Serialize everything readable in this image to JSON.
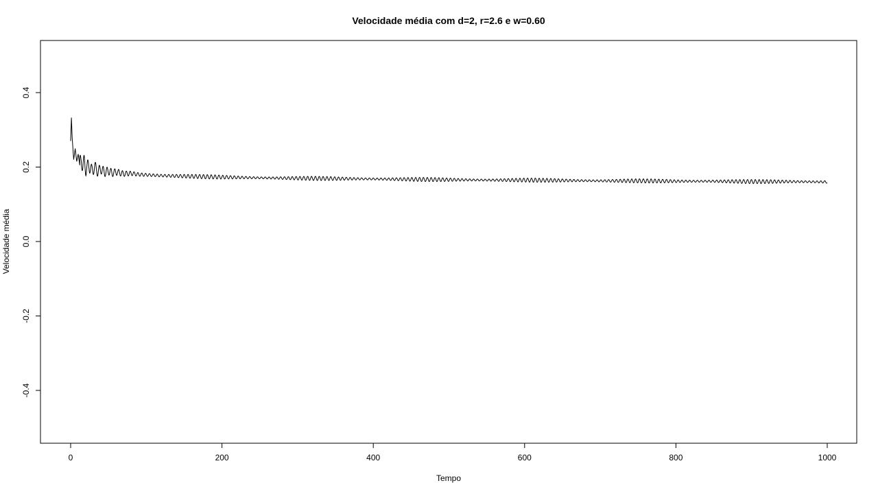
{
  "chart_data": {
    "type": "line",
    "title": "Velocidade média com d=2, r=2.6 e w=0.60",
    "xlabel": "Tempo",
    "ylabel": "Velocidade média",
    "xlim": [
      0,
      1000
    ],
    "ylim": [
      -0.5,
      0.5
    ],
    "x_ticks": [
      0,
      200,
      400,
      600,
      800,
      1000
    ],
    "x_tick_labels": [
      "0",
      "200",
      "400",
      "600",
      "800",
      "1000"
    ],
    "y_ticks": [
      -0.4,
      -0.2,
      0.0,
      0.2,
      0.4
    ],
    "y_tick_labels": [
      "-0.4",
      "-0.2",
      "0.0",
      "0.2",
      "0.4"
    ],
    "grid": false,
    "legend": "none",
    "line_color": "#000000",
    "series": [
      {
        "x": [
          0,
          1,
          2,
          4,
          6,
          8,
          10,
          12,
          14,
          16,
          18,
          20,
          24,
          28,
          32,
          36,
          40,
          45,
          50,
          55,
          60,
          70,
          80,
          90,
          100,
          120,
          140,
          160,
          180,
          200,
          250,
          300,
          350,
          400,
          450,
          500,
          550,
          600,
          650,
          700,
          750,
          800,
          850,
          900,
          950,
          1000
        ],
        "y": [
          0.27,
          0.333,
          0.28,
          0.22,
          0.25,
          0.215,
          0.235,
          0.205,
          0.225,
          0.2,
          0.215,
          0.195,
          0.205,
          0.19,
          0.2,
          0.188,
          0.195,
          0.186,
          0.19,
          0.184,
          0.187,
          0.182,
          0.183,
          0.18,
          0.179,
          0.177,
          0.176,
          0.175,
          0.174,
          0.173,
          0.171,
          0.17,
          0.169,
          0.168,
          0.167,
          0.166,
          0.165,
          0.165,
          0.164,
          0.163,
          0.163,
          0.162,
          0.162,
          0.161,
          0.161,
          0.16
        ]
      }
    ]
  }
}
